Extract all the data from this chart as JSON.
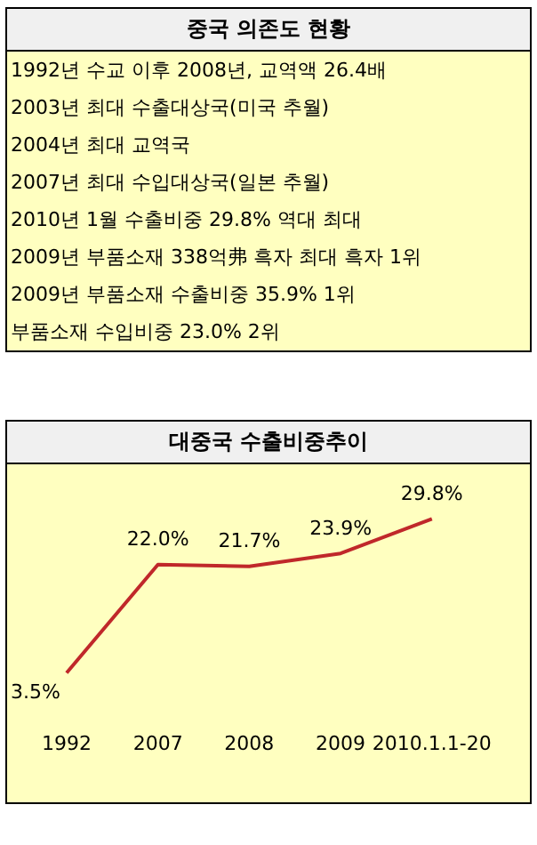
{
  "chart_data": [
    {
      "type": "other",
      "title": "중국 의존도 현황",
      "annotations": [
        "1992년 수교 이후 2008년, 교역액 26.4배",
        "2003년 최대 수출대상국(미국 추월)",
        "2004년 최대 교역국",
        "2007년 최대 수입대상국(일본 추월)",
        "2010년 1월 수출비중 29.8% 역대 최대",
        "2009년 부품소재 338억弗 흑자 최대 흑자 1위",
        "2009년 부품소재 수출비중 35.9% 1위",
        "부품소재 수입비중 23.0% 2위"
      ]
    },
    {
      "type": "line",
      "title": "대중국 수출비중추이",
      "categories": [
        "1992",
        "2007",
        "2008",
        "2009",
        "2010.1.1-20"
      ],
      "color": "#c0282a",
      "values": [
        3.5,
        22.0,
        21.7,
        23.9,
        29.8
      ],
      "value_labels": [
        "3.5%",
        "22.0%",
        "21.7%",
        "23.9%",
        "29.8%"
      ],
      "grid": false,
      "legend": false,
      "marker": "none",
      "line_style": "solid"
    }
  ]
}
